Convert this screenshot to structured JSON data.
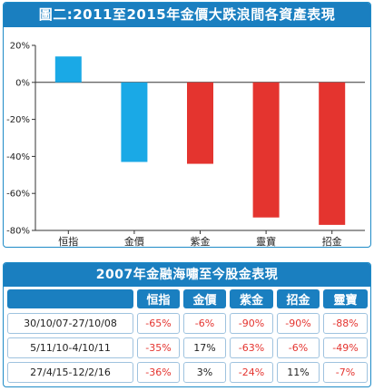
{
  "chart_title": "圖二:2011至2015年金價大跌浪間各資產表現",
  "chart_data": {
    "type": "bar",
    "categories": [
      "恒指",
      "金價",
      "紫金",
      "靈寶",
      "招金"
    ],
    "values": [
      14,
      -43,
      -44,
      -73,
      -77
    ],
    "bar_colors": [
      "#1aa9e6",
      "#1aa9e6",
      "#e4342f",
      "#e4342f",
      "#e4342f"
    ],
    "ylim": [
      -80,
      20
    ],
    "yticks": [
      20,
      0,
      -20,
      -40,
      -60,
      -80
    ],
    "ytick_labels": [
      "20%",
      "0%",
      "-20%",
      "-40%",
      "-60%",
      "-80%"
    ],
    "grid": false
  },
  "table": {
    "title": "2007年金融海嘯至今股金表現",
    "headers": [
      "",
      "恒指",
      "金價",
      "紫金",
      "招金",
      "靈寶"
    ],
    "rows": [
      {
        "period": "30/10/07-27/10/08",
        "values": [
          "-65%",
          "-6%",
          "-90%",
          "-90%",
          "-88%"
        ]
      },
      {
        "period": "5/11/10-4/10/11",
        "values": [
          "-35%",
          "17%",
          "-63%",
          "-6%",
          "-49%"
        ]
      },
      {
        "period": "27/4/15-12/2/16",
        "values": [
          "-36%",
          "3%",
          "-24%",
          "11%",
          "-7%"
        ]
      }
    ]
  },
  "colors": {
    "accent": "#1a7fc0",
    "negative": "#e4342f",
    "positive_bar": "#1aa9e6"
  }
}
